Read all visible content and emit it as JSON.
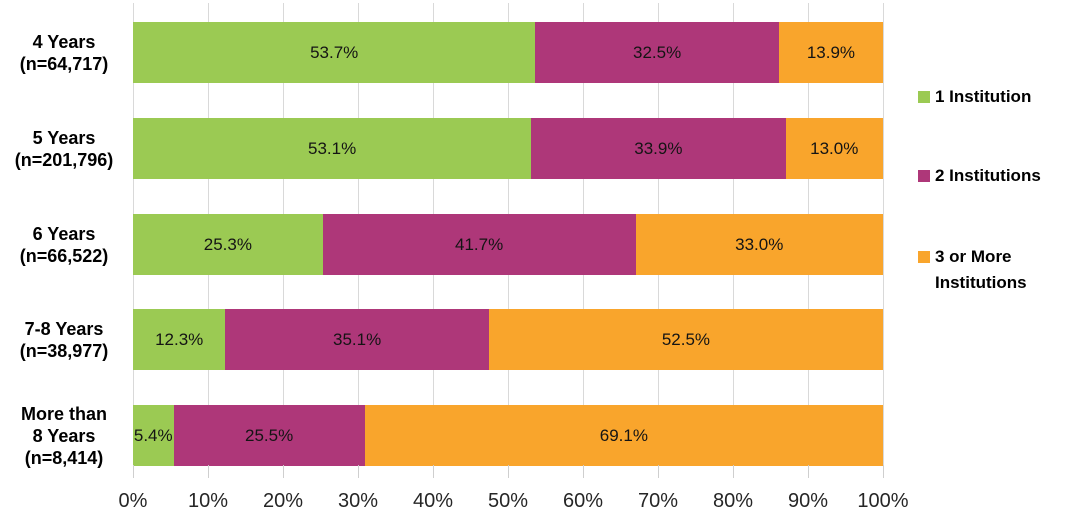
{
  "chart_data": {
    "type": "bar",
    "orientation": "horizontal",
    "stacked": true,
    "title": "",
    "xlabel": "",
    "ylabel": "",
    "categories": [
      {
        "lines": [
          "4 Years",
          "(n=64,717)"
        ]
      },
      {
        "lines": [
          "5 Years",
          "(n=201,796)"
        ]
      },
      {
        "lines": [
          "6 Years",
          "(n=66,522)"
        ]
      },
      {
        "lines": [
          "7-8 Years",
          "(n=38,977)"
        ]
      },
      {
        "lines": [
          "More than",
          "8 Years",
          "(n=8,414)"
        ]
      }
    ],
    "series": [
      {
        "name": "1 Institution",
        "color": "#9BCA53",
        "values": [
          53.7,
          53.1,
          25.3,
          12.3,
          5.4
        ],
        "labels": [
          "53.7%",
          "53.1%",
          "25.3%",
          "12.3%",
          "5.4%"
        ]
      },
      {
        "name": "2 Institutions",
        "color": "#AE3779",
        "values": [
          32.5,
          33.9,
          41.7,
          35.1,
          25.5
        ],
        "labels": [
          "32.5%",
          "33.9%",
          "41.7%",
          "35.1%",
          "25.5%"
        ]
      },
      {
        "name": "3 or More Institutions",
        "color": "#F9A52C",
        "values": [
          13.9,
          13.0,
          33.0,
          52.5,
          69.1
        ],
        "labels": [
          "13.9%",
          "13.0%",
          "33.0%",
          "52.5%",
          "69.1%"
        ]
      }
    ],
    "x_axis": {
      "ticks": [
        "0%",
        "10%",
        "20%",
        "30%",
        "40%",
        "50%",
        "60%",
        "70%",
        "80%",
        "90%",
        "100%"
      ],
      "min": 0,
      "max": 100
    },
    "legend": {
      "position": "right",
      "items": [
        {
          "label_lines": [
            "1 Institution"
          ],
          "color": "#9BCA53"
        },
        {
          "label_lines": [
            "2 Institutions"
          ],
          "color": "#AE3779"
        },
        {
          "label_lines": [
            "3 or More",
            "Institutions"
          ],
          "color": "#F9A52C"
        }
      ]
    },
    "gridlines": {
      "vertical": true,
      "color": "#D9D9D9"
    }
  }
}
